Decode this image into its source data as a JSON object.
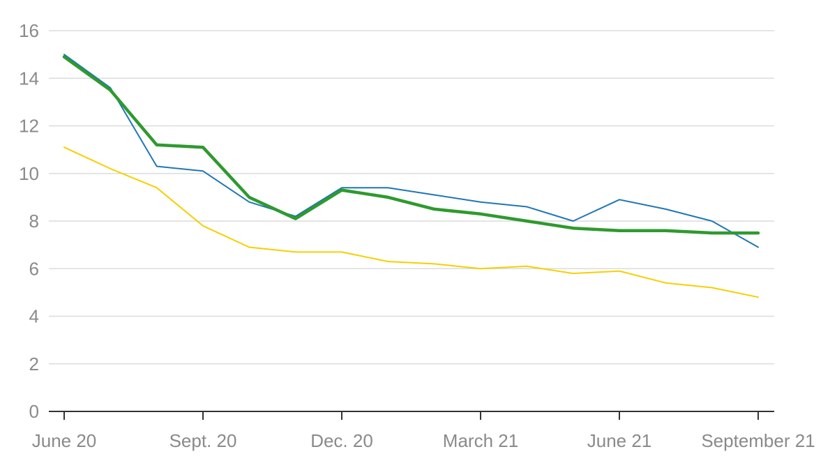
{
  "chart_data": {
    "type": "line",
    "title": "",
    "xlabel": "",
    "ylabel": "",
    "x_tick_labels": [
      "June 20",
      "Sept. 20",
      "Dec. 20",
      "March 21",
      "June 21",
      "September 21"
    ],
    "y_ticks": [
      0,
      2,
      4,
      6,
      8,
      10,
      12,
      14,
      16
    ],
    "ylim": [
      0,
      16
    ],
    "grid": true,
    "legend": "none",
    "x": [
      "2020-06",
      "2020-07",
      "2020-08",
      "2020-09",
      "2020-10",
      "2020-11",
      "2020-12",
      "2021-01",
      "2021-02",
      "2021-03",
      "2021-04",
      "2021-05",
      "2021-06",
      "2021-07",
      "2021-08",
      "2021-09"
    ],
    "series": [
      {
        "color": "#1f77b4",
        "stroke": "thin",
        "values": [
          15.0,
          13.6,
          10.3,
          10.1,
          8.8,
          8.2,
          9.4,
          9.4,
          9.1,
          8.8,
          8.6,
          8.0,
          8.9,
          8.5,
          8.0,
          6.9
        ]
      },
      {
        "color": "#f5d000",
        "stroke": "thin",
        "values": [
          11.1,
          10.2,
          9.4,
          7.8,
          6.9,
          6.7,
          6.7,
          6.3,
          6.2,
          6.0,
          6.1,
          5.8,
          5.9,
          5.4,
          5.2,
          4.8
        ]
      },
      {
        "color": "#2e9a2e",
        "stroke": "thick",
        "values": [
          14.9,
          13.5,
          11.2,
          11.1,
          9.0,
          8.1,
          9.3,
          9.0,
          8.5,
          8.3,
          8.0,
          7.7,
          7.6,
          7.6,
          7.5,
          7.5
        ]
      }
    ]
  }
}
